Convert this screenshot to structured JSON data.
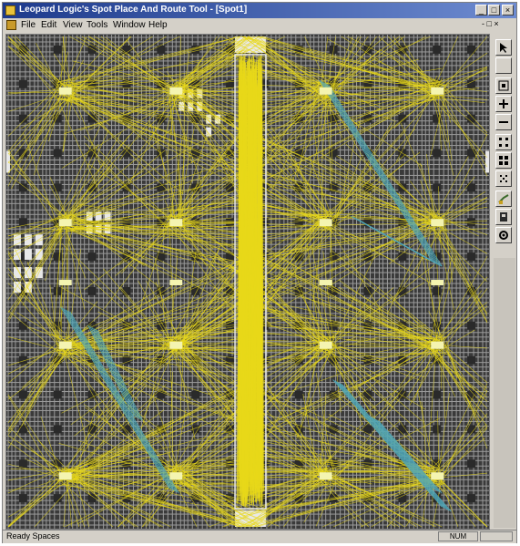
{
  "window": {
    "title": "Leopard Logic's Spot Place And Route Tool - [Spot1]",
    "caption_buttons": {
      "minimize": "_",
      "maximize": "□",
      "close": "×"
    }
  },
  "menubar": {
    "items": [
      "File",
      "Edit",
      "View",
      "Tools",
      "Window",
      "Help"
    ],
    "right_controls": "- □ ×"
  },
  "toolbar": {
    "buttons": [
      {
        "icon": "pointer-icon"
      },
      {
        "icon": "blank-icon"
      },
      {
        "icon": "zoom-fit-icon"
      },
      {
        "icon": "zoom-in-icon"
      },
      {
        "icon": "zoom-out-icon"
      },
      {
        "icon": "grid-small-icon"
      },
      {
        "icon": "grid-large-icon"
      },
      {
        "icon": "grid-dots-icon"
      },
      {
        "icon": "route-icon"
      },
      {
        "icon": "layer-icon"
      },
      {
        "icon": "settings-icon"
      }
    ]
  },
  "statusbar": {
    "text": "Ready Spaces",
    "right_panel": "NUM"
  },
  "colors": {
    "wire_primary": "#e8d81a",
    "wire_secondary": "#4fa6b8",
    "fabric_bg": "#3a3a3a",
    "fabric_grid": "#9a9a9a",
    "titlebar": "#1d3a8c"
  }
}
